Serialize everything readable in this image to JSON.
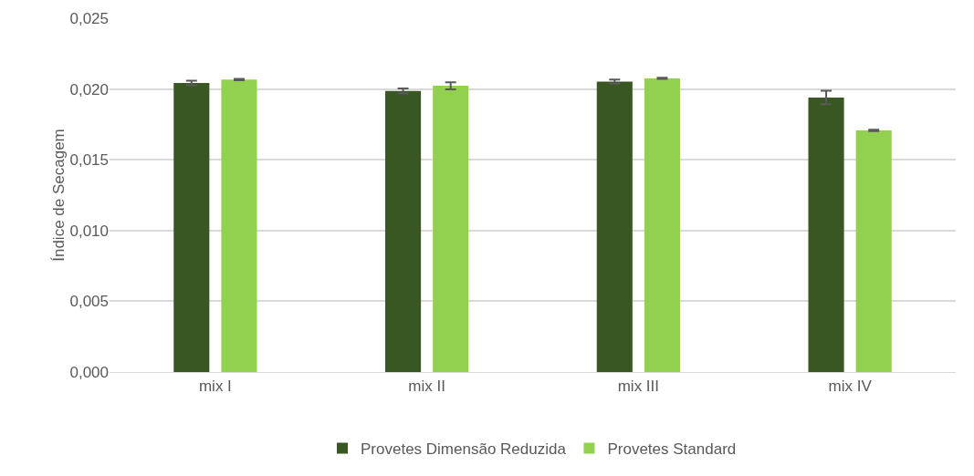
{
  "chart_data": {
    "type": "bar",
    "ylabel": "Índice de Secagem",
    "categories": [
      "mix I",
      "mix II",
      "mix III",
      "mix IV"
    ],
    "series": [
      {
        "name": "Provetes Dimensão Reduzida",
        "color": "#385723",
        "values": [
          0.02042,
          0.01986,
          0.02052,
          0.0194
        ],
        "errors": [
          0.00016,
          0.00018,
          0.00015,
          0.00047
        ]
      },
      {
        "name": "Provetes Standard",
        "color": "#92d050",
        "values": [
          0.02067,
          0.02023,
          0.02075,
          0.01707
        ],
        "errors": [
          5e-05,
          0.00025,
          4e-05,
          5e-05
        ]
      }
    ],
    "ylim": [
      0,
      0.025
    ],
    "yticks": [
      {
        "value": 0,
        "label": "0,000"
      },
      {
        "value": 0.005,
        "label": "0,005"
      },
      {
        "value": 0.01,
        "label": "0,010"
      },
      {
        "value": 0.015,
        "label": "0,015"
      },
      {
        "value": 0.02,
        "label": "0,020"
      },
      {
        "value": 0.025,
        "label": "0,025"
      }
    ],
    "grid": "y",
    "legend": "bottom"
  }
}
